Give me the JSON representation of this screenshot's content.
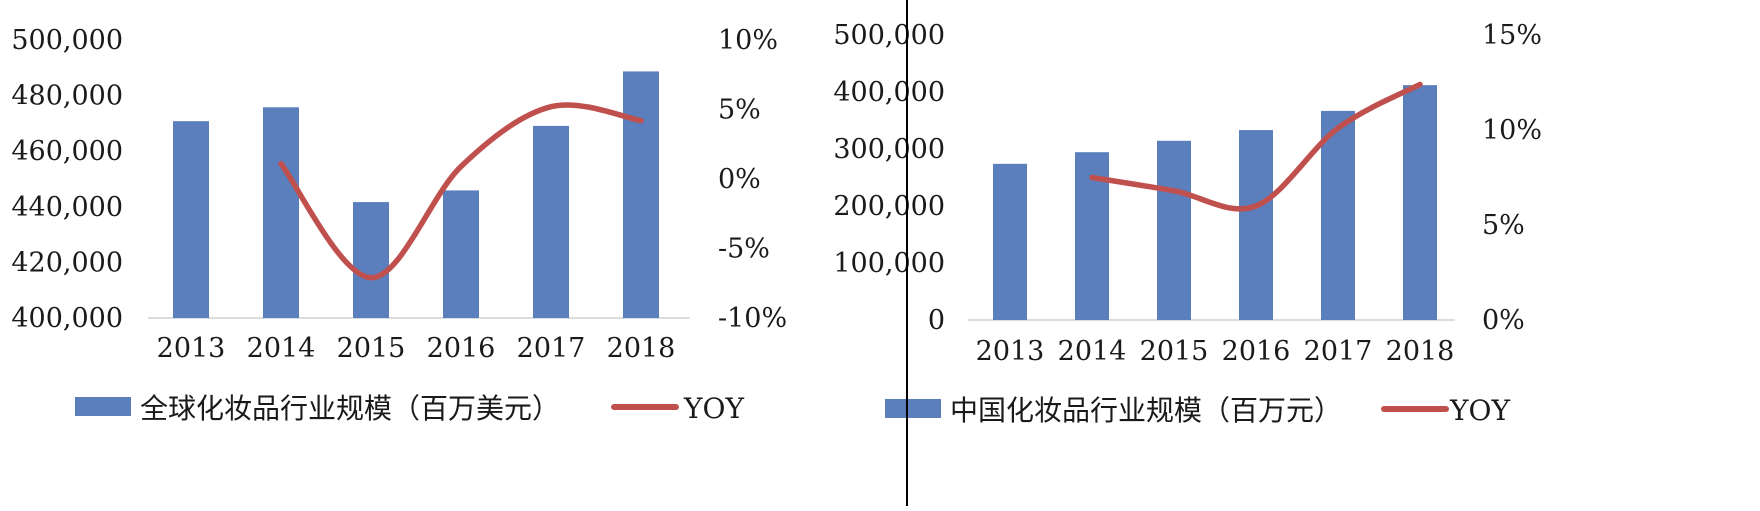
{
  "chart_data": [
    {
      "type": "bar",
      "categories": [
        "2013",
        "2014",
        "2015",
        "2016",
        "2017",
        "2018"
      ],
      "series": [
        {
          "name": "全球化妆品行业规模（百万美元）",
          "kind": "bar",
          "axis": "left",
          "color": "#5b7fbc",
          "values": [
            470800,
            475800,
            441700,
            445900,
            469100,
            488700
          ]
        },
        {
          "name": "YOY",
          "kind": "line",
          "axis": "right",
          "color": "#c0504d",
          "values": [
            null,
            1.1,
            -7.1,
            0.9,
            5.2,
            4.2
          ]
        }
      ],
      "y_left": {
        "ticks": [
          "400,000",
          "420,000",
          "440,000",
          "460,000",
          "480,000",
          "500,000"
        ],
        "ylim": [
          400000,
          500000
        ]
      },
      "y_right": {
        "ticks": [
          "-10%",
          "-5%",
          "0%",
          "5%",
          "10%"
        ],
        "ylim": [
          -10,
          10
        ]
      },
      "grid": false,
      "legend_position": "bottom"
    },
    {
      "type": "bar",
      "categories": [
        "2013",
        "2014",
        "2015",
        "2016",
        "2017",
        "2018"
      ],
      "series": [
        {
          "name": "中国化妆品行业规模（百万元）",
          "kind": "bar",
          "axis": "left",
          "color": "#5b7fbc",
          "values": [
            274000,
            294400,
            314400,
            333200,
            366800,
            412000
          ]
        },
        {
          "name": "YOY",
          "kind": "line",
          "axis": "right",
          "color": "#c0504d",
          "values": [
            null,
            7.5,
            6.8,
            6.0,
            10.1,
            12.4
          ]
        }
      ],
      "y_left": {
        "ticks": [
          "0",
          "100,000",
          "200,000",
          "300,000",
          "400,000",
          "500,000"
        ],
        "ylim": [
          0,
          500000
        ]
      },
      "y_right": {
        "ticks": [
          "0%",
          "5%",
          "10%",
          "15%"
        ],
        "ylim": [
          0,
          15
        ]
      },
      "grid": false,
      "legend_position": "bottom"
    }
  ]
}
